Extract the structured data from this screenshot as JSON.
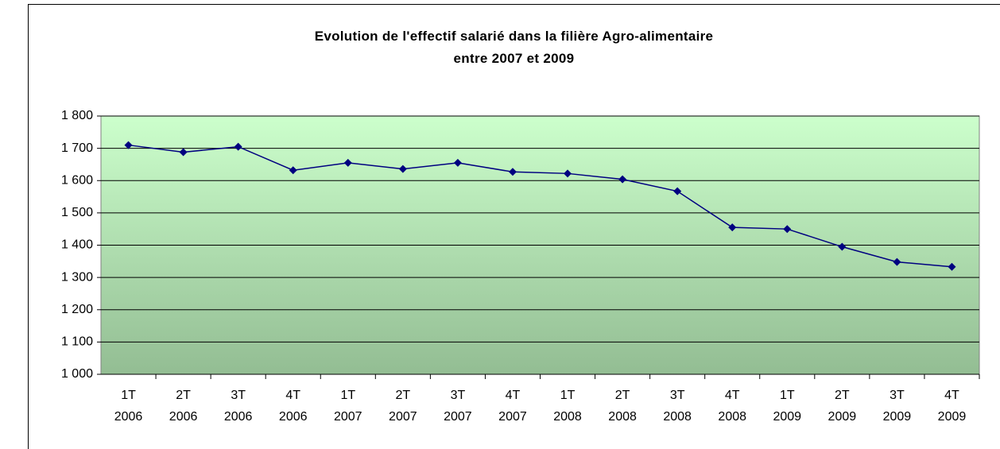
{
  "chart_data": {
    "type": "line",
    "title": "Evolution de l'effectif salarié dans la filière Agro-alimentaire\nentre 2007 et 2009",
    "categories": [
      "1T\n2006",
      "2T\n2006",
      "3T\n2006",
      "4T\n2006",
      "1T\n2007",
      "2T\n2007",
      "3T\n2007",
      "4T\n2007",
      "1T\n2008",
      "2T\n2008",
      "3T\n2008",
      "4T\n2008",
      "1T\n2009",
      "2T\n2009",
      "3T\n2009",
      "4T\n2009"
    ],
    "series": [
      {
        "name": "Effectif salarié",
        "color": "#000080",
        "values": [
          1710,
          1688,
          1705,
          1632,
          1655,
          1636,
          1655,
          1627,
          1622,
          1604,
          1567,
          1455,
          1450,
          1395,
          1348,
          1333
        ]
      }
    ],
    "ylim": [
      1000,
      1800
    ],
    "yticks": [
      {
        "value": 1000,
        "label": "1 000"
      },
      {
        "value": 1100,
        "label": "1 100"
      },
      {
        "value": 1200,
        "label": "1 200"
      },
      {
        "value": 1300,
        "label": "1 300"
      },
      {
        "value": 1400,
        "label": "1 400"
      },
      {
        "value": 1500,
        "label": "1 500"
      },
      {
        "value": 1600,
        "label": "1 600"
      },
      {
        "value": 1700,
        "label": "1 700"
      },
      {
        "value": 1800,
        "label": "1 800"
      }
    ],
    "grid": true
  }
}
